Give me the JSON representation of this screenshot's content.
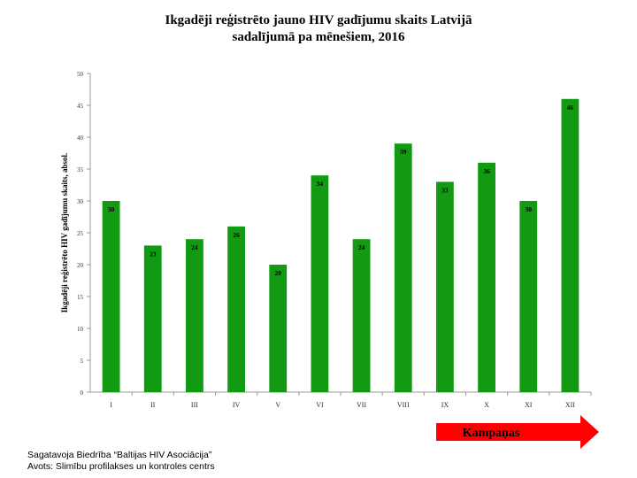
{
  "colors": {
    "bar": "#129a12",
    "arrow": "#ff0000",
    "axis": "#999999"
  },
  "chart_data": {
    "type": "bar",
    "title_lines": [
      "Ikgadēji reģistrēto jauno HIV gadījumu skaits Latvijā",
      "sadalījumā pa mēnešiem, 2016"
    ],
    "ylabel": "Ikgadēji reģistrēto HIV gadījumu skaits, absol.",
    "xlabel": "",
    "ylim": [
      0,
      50
    ],
    "yticks": [
      0,
      5,
      10,
      15,
      20,
      25,
      30,
      35,
      40,
      45,
      50
    ],
    "categories": [
      "I",
      "II",
      "III",
      "IV",
      "V",
      "VI",
      "VII",
      "VIII",
      "IX",
      "X",
      "XI",
      "XII"
    ],
    "values": [
      30,
      23,
      24,
      26,
      20,
      34,
      24,
      39,
      33,
      36,
      30,
      46
    ],
    "grid": false,
    "legend": "none"
  },
  "arrow": {
    "label": "Kampaņas"
  },
  "footer": {
    "line1": "Sagatavoja Biedrība “Baltijas HIV Asociācija”",
    "line2": "Avots: Slimību profilakses un kontroles centrs"
  }
}
